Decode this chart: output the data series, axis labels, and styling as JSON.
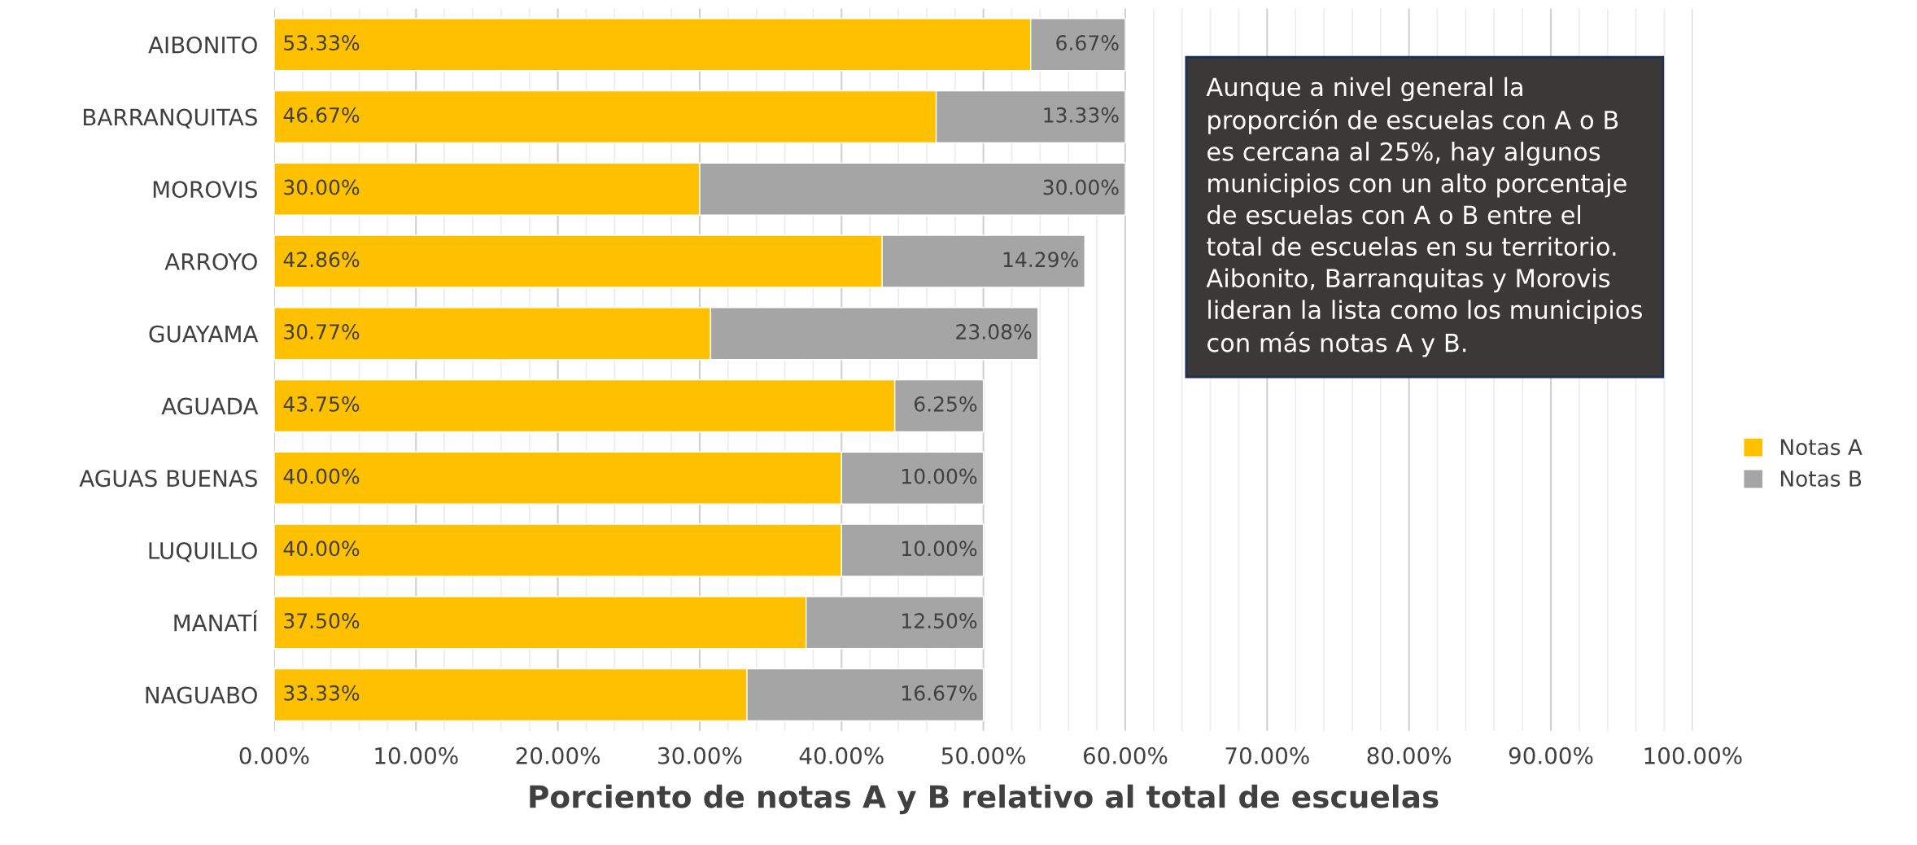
{
  "chart_data": {
    "type": "bar",
    "orientation": "horizontal",
    "stacked": true,
    "xlabel": "Porciento de notas A y B relativo al total de escuelas",
    "categories": [
      "AIBONITO",
      "BARRANQUITAS",
      "MOROVIS",
      "ARROYO",
      "GUAYAMA",
      "AGUADA",
      "AGUAS BUENAS",
      "LUQUILLO",
      "MANATÍ",
      "NAGUABO"
    ],
    "series": [
      {
        "name": "Notas A",
        "color": "#ffc000",
        "values": [
          53.33,
          46.67,
          30.0,
          42.86,
          30.77,
          43.75,
          40.0,
          40.0,
          37.5,
          33.33
        ],
        "value_labels": [
          "53.33%",
          "46.67%",
          "30.00%",
          "42.86%",
          "30.77%",
          "43.75%",
          "40.00%",
          "40.00%",
          "37.50%",
          "33.33%"
        ]
      },
      {
        "name": "Notas B",
        "color": "#a5a5a5",
        "values": [
          6.67,
          13.33,
          30.0,
          14.29,
          23.08,
          6.25,
          10.0,
          10.0,
          12.5,
          16.67
        ],
        "value_labels": [
          "6.67%",
          "13.33%",
          "30.00%",
          "14.29%",
          "23.08%",
          "6.25%",
          "10.00%",
          "10.00%",
          "12.50%",
          "16.67%"
        ]
      }
    ],
    "xlim": [
      0,
      100
    ],
    "xticks": [
      {
        "value": 0,
        "label": "0.00%"
      },
      {
        "value": 2,
        "label": null
      },
      {
        "value": 4,
        "label": null
      },
      {
        "value": 6,
        "label": null
      },
      {
        "value": 8,
        "label": null
      },
      {
        "value": 10,
        "label": "10.00%"
      },
      {
        "value": 12,
        "label": null
      },
      {
        "value": 14,
        "label": null
      },
      {
        "value": 16,
        "label": null
      },
      {
        "value": 18,
        "label": null
      },
      {
        "value": 20,
        "label": "20.00%"
      },
      {
        "value": 22,
        "label": null
      },
      {
        "value": 24,
        "label": null
      },
      {
        "value": 26,
        "label": null
      },
      {
        "value": 28,
        "label": null
      },
      {
        "value": 30,
        "label": "30.00%"
      },
      {
        "value": 32,
        "label": null
      },
      {
        "value": 34,
        "label": null
      },
      {
        "value": 36,
        "label": null
      },
      {
        "value": 38,
        "label": null
      },
      {
        "value": 40,
        "label": "40.00%"
      },
      {
        "value": 42,
        "label": null
      },
      {
        "value": 44,
        "label": null
      },
      {
        "value": 46,
        "label": null
      },
      {
        "value": 48,
        "label": null
      },
      {
        "value": 50,
        "label": "50.00%"
      },
      {
        "value": 52,
        "label": null
      },
      {
        "value": 54,
        "label": null
      },
      {
        "value": 56,
        "label": null
      },
      {
        "value": 58,
        "label": null
      },
      {
        "value": 60,
        "label": "60.00%"
      },
      {
        "value": 62,
        "label": null
      },
      {
        "value": 64,
        "label": null
      },
      {
        "value": 66,
        "label": null
      },
      {
        "value": 68,
        "label": null
      },
      {
        "value": 70,
        "label": "70.00%"
      },
      {
        "value": 72,
        "label": null
      },
      {
        "value": 74,
        "label": null
      },
      {
        "value": 76,
        "label": null
      },
      {
        "value": 78,
        "label": null
      },
      {
        "value": 80,
        "label": "80.00%"
      },
      {
        "value": 82,
        "label": null
      },
      {
        "value": 84,
        "label": null
      },
      {
        "value": 86,
        "label": null
      },
      {
        "value": 88,
        "label": null
      },
      {
        "value": 90,
        "label": "90.00%"
      },
      {
        "value": 92,
        "label": null
      },
      {
        "value": 94,
        "label": null
      },
      {
        "value": 96,
        "label": null
      },
      {
        "value": 98,
        "label": null
      },
      {
        "value": 100,
        "label": "100.00%"
      }
    ],
    "grid": "x",
    "legend": "right",
    "annotations": [
      "Aunque a nivel general la\nproporción de escuelas con A o B\nes cercana al 25%, hay algunos\nmunicipios con un alto porcentaje\nde escuelas con A o B entre el\ntotal de escuelas en su territorio.\nAibonito, Barranquitas y Morovis\nlideran la lista como los municipios\ncon más notas A y B."
    ]
  }
}
